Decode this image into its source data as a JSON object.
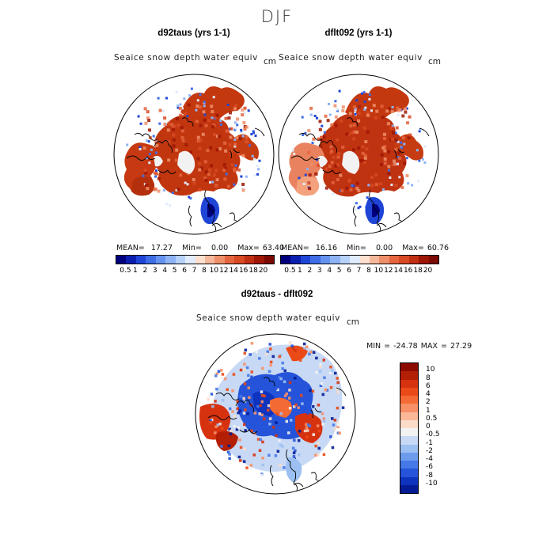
{
  "title": "DJF",
  "panels": [
    {
      "title": "d92taus (yrs 1-1)",
      "variable": "Seaice snow depth water equiv",
      "units": "cm",
      "stats": {
        "mean_label": "MEAN=",
        "mean": "17.27",
        "min_label": "Min=",
        "min": "0.00",
        "max_label": "Max=",
        "max": "63.40"
      }
    },
    {
      "title": "dflt092 (yrs 1-1)",
      "variable": "Seaice snow depth water equiv",
      "units": "cm",
      "stats": {
        "mean_label": "MEAN=",
        "mean": "16.16",
        "min_label": "Min=",
        "min": "0.00",
        "max_label": "Max=",
        "max": "60.76"
      }
    }
  ],
  "colorbar": {
    "labels": [
      "0.5",
      "1",
      "2",
      "3",
      "4",
      "5",
      "6",
      "7",
      "8",
      "10",
      "12",
      "14",
      "16",
      "18",
      "20"
    ],
    "colors": [
      "#00007f",
      "#0a1fb0",
      "#1f45d6",
      "#3f6de6",
      "#6492ee",
      "#8db3f4",
      "#b7d1f8",
      "#e0ebfc",
      "#fde0cf",
      "#f6b89c",
      "#ee8f69",
      "#e5663e",
      "#d74a24",
      "#bf2f12",
      "#9e1605",
      "#7a0a03"
    ]
  },
  "diff_panel": {
    "title": "d92taus - dflt092",
    "variable": "Seaice snow depth water equiv",
    "units": "cm",
    "stats_text": "MIN = -24.78 MAX =  27.29",
    "colorbar": {
      "labels": [
        "10",
        "8",
        "6",
        "4",
        "2",
        "1",
        "0.5",
        "0",
        "-0.5",
        "-1",
        "-2",
        "-4",
        "-6",
        "-8",
        "-10"
      ],
      "colors": [
        "#8c0a00",
        "#b31f04",
        "#d6320f",
        "#ea4a18",
        "#f46a34",
        "#f79066",
        "#fab898",
        "#fbdcc9",
        "#f2f2f2",
        "#c7d9f5",
        "#9cc0f1",
        "#6e9ced",
        "#4679e8",
        "#2553d9",
        "#0d33bf",
        "#031c96"
      ]
    }
  }
}
